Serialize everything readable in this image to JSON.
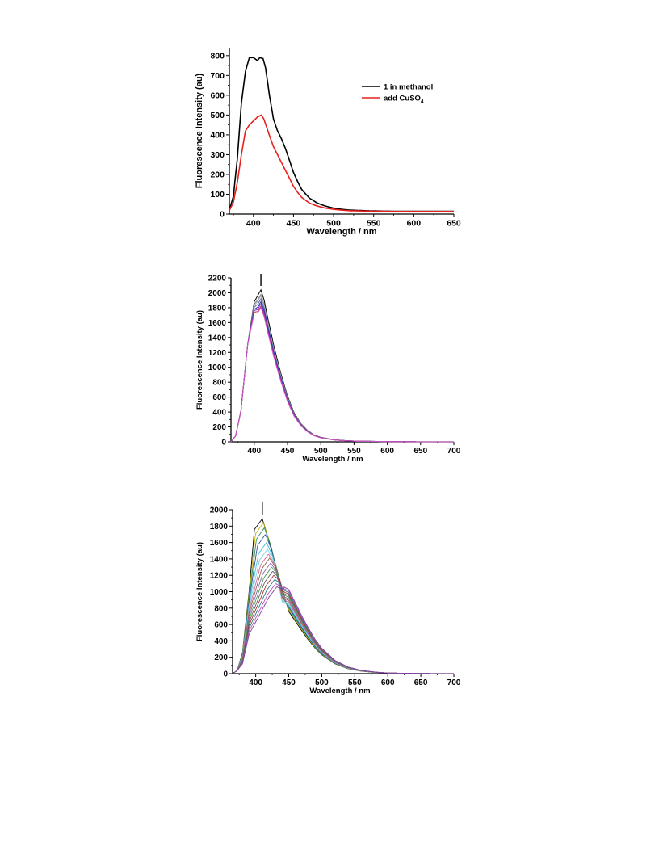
{
  "chart_data": [
    {
      "type": "line",
      "xlabel": "Wavelength / nm",
      "ylabel": "Fluorescence Intensity (au)",
      "xlim": [
        370,
        650
      ],
      "ylim": [
        0,
        840
      ],
      "xticks": [
        400,
        450,
        500,
        550,
        600,
        650
      ],
      "yticks": [
        0,
        100,
        200,
        300,
        400,
        500,
        600,
        700,
        800
      ],
      "legend": {
        "placement": "top-right",
        "entries": [
          {
            "name": "1 in methanol",
            "color": "#000000"
          },
          {
            "name": "add CuSO",
            "sub": "4",
            "color": "#e8201c"
          }
        ]
      },
      "series": [
        {
          "name": "1 in methanol",
          "color": "#000000",
          "x": [
            370,
            375,
            380,
            385,
            390,
            395,
            400,
            405,
            408,
            412,
            415,
            420,
            425,
            430,
            435,
            440,
            445,
            450,
            455,
            460,
            470,
            480,
            490,
            500,
            510,
            520,
            540,
            560,
            580,
            600,
            625,
            650
          ],
          "y": [
            20,
            90,
            280,
            560,
            720,
            790,
            790,
            775,
            790,
            785,
            740,
            600,
            480,
            420,
            380,
            330,
            270,
            210,
            165,
            125,
            80,
            55,
            40,
            30,
            24,
            20,
            17,
            15,
            14,
            14,
            14,
            14
          ]
        },
        {
          "name": "add CuSO4",
          "color": "#e8201c",
          "x": [
            370,
            375,
            380,
            385,
            390,
            395,
            400,
            405,
            410,
            413,
            418,
            425,
            430,
            435,
            440,
            445,
            450,
            455,
            460,
            470,
            480,
            490,
            500,
            510,
            520,
            540,
            560,
            580,
            600,
            625,
            650
          ],
          "y": [
            18,
            60,
            160,
            300,
            420,
            450,
            470,
            490,
            500,
            480,
            420,
            340,
            300,
            260,
            220,
            180,
            140,
            110,
            85,
            55,
            40,
            30,
            24,
            20,
            17,
            15,
            14,
            13,
            13,
            13,
            13
          ]
        }
      ]
    },
    {
      "type": "line",
      "xlabel": "Wavelength / nm",
      "ylabel": "Fluorescence Intensity (au)",
      "xlim": [
        365,
        700
      ],
      "ylim": [
        0,
        2200
      ],
      "xticks": [
        400,
        450,
        500,
        550,
        600,
        650,
        700
      ],
      "yticks": [
        0,
        200,
        400,
        600,
        800,
        1000,
        1200,
        1400,
        1600,
        1800,
        2000,
        2200
      ],
      "marker_x": 410,
      "series": [
        {
          "color": "#000000",
          "peak": 2040,
          "shoulder": 1880
        },
        {
          "color": "#808080",
          "peak": 1980,
          "shoulder": 1850
        },
        {
          "color": "#b0b0b0",
          "peak": 1960,
          "shoulder": 1830
        },
        {
          "color": "#4060c0",
          "peak": 1920,
          "shoulder": 1810
        },
        {
          "color": "#303080",
          "peak": 1880,
          "shoulder": 1780
        },
        {
          "color": "#8a2be2",
          "peak": 1850,
          "shoulder": 1760
        },
        {
          "color": "#c03050",
          "peak": 1820,
          "shoulder": 1740
        },
        {
          "color": "#cc55cc",
          "peak": 1800,
          "shoulder": 1730
        }
      ]
    },
    {
      "type": "line",
      "xlabel": "Wavelength / nm",
      "ylabel": "Fluorescence Intensity (au)",
      "xlim": [
        365,
        700
      ],
      "ylim": [
        0,
        2000
      ],
      "xticks": [
        400,
        450,
        500,
        550,
        600,
        650,
        700
      ],
      "yticks": [
        0,
        200,
        400,
        600,
        800,
        1000,
        1200,
        1400,
        1600,
        1800,
        2000
      ],
      "marker_x": 410,
      "series": [
        {
          "color": "#000000",
          "peak": 1890
        },
        {
          "color": "#c8b400",
          "peak": 1840
        },
        {
          "color": "#2e8b57",
          "peak": 1780
        },
        {
          "color": "#3050a0",
          "peak": 1700
        },
        {
          "color": "#40c0d0",
          "peak": 1600
        },
        {
          "color": "#80d0f0",
          "peak": 1520
        },
        {
          "color": "#d07090",
          "peak": 1460
        },
        {
          "color": "#a06050",
          "peak": 1410
        },
        {
          "color": "#9060c0",
          "peak": 1350
        },
        {
          "color": "#50a050",
          "peak": 1300
        },
        {
          "color": "#606060",
          "peak": 1250
        },
        {
          "color": "#b03030",
          "peak": 1200
        },
        {
          "color": "#208080",
          "peak": 1150
        },
        {
          "color": "#c050c0",
          "peak": 1100
        },
        {
          "color": "#8040a0",
          "peak": 1060
        }
      ]
    }
  ]
}
